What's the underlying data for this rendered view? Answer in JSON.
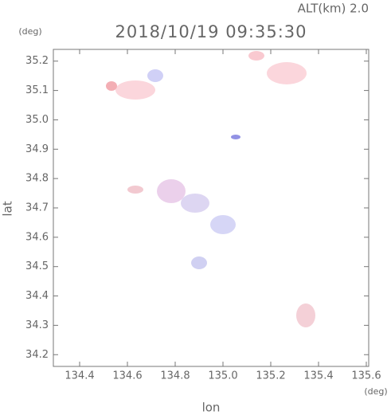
{
  "chart_data": {
    "type": "radar-map",
    "altitude_label": "ALT(km) 2.0",
    "title": "2018/10/19 09:35:30",
    "y_unit": "(deg)",
    "x_unit": "(deg)",
    "xlabel": "lon",
    "ylabel": "lat",
    "xlim": [
      134.29,
      135.61
    ],
    "xticks": [
      134.4,
      134.6,
      134.8,
      {
        "value": 135,
        "label": "135.0"
      },
      135.2,
      135.4,
      135.6
    ],
    "ylim": [
      34.16,
      35.24
    ],
    "yticks": [
      34.2,
      34.3,
      34.4,
      34.5,
      34.6,
      34.7,
      34.8,
      34.9,
      {
        "value": 35,
        "label": "35.0"
      },
      35.1,
      35.2
    ]
  }
}
